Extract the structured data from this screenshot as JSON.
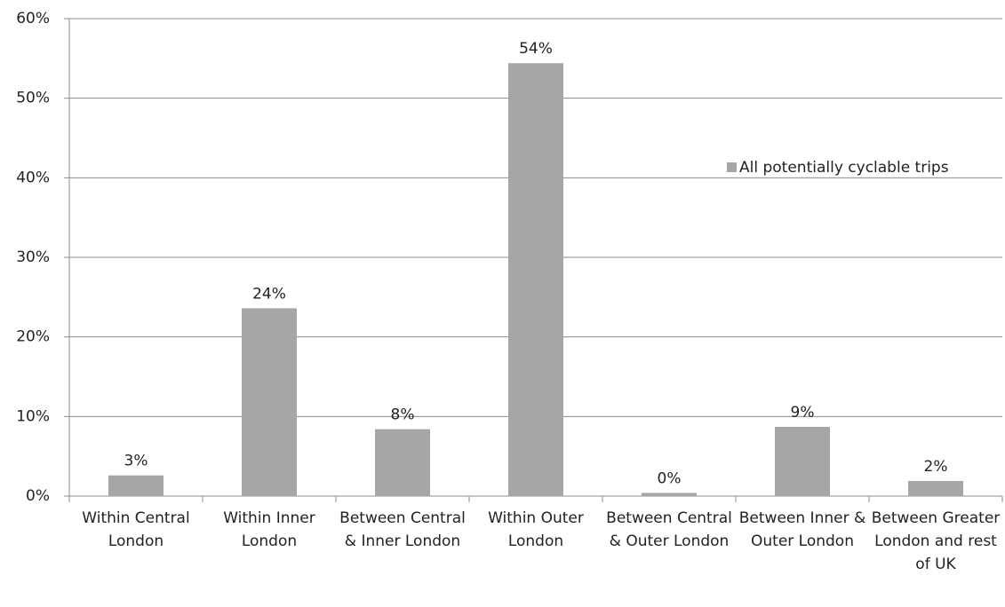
{
  "chart_data": {
    "type": "bar",
    "categories": [
      "Within Central London",
      "Within Inner London",
      "Between Central & Inner London",
      "Within Outer London",
      "Between Central & Outer London",
      "Between Inner & Outer London",
      "Between Greater London and rest of UK"
    ],
    "series": [
      {
        "name": "All potentially cyclable trips",
        "color": "#a6a6a6",
        "values": [
          2.6,
          23.6,
          8.4,
          54.4,
          0.4,
          8.7,
          1.9
        ],
        "value_labels": [
          "3%",
          "24%",
          "8%",
          "54%",
          "0%",
          "9%",
          "2%"
        ]
      }
    ],
    "ylim": [
      0,
      60
    ],
    "yticks": [
      {
        "value": 0,
        "label": "0%"
      },
      {
        "value": 10,
        "label": "10%"
      },
      {
        "value": 20,
        "label": "20%"
      },
      {
        "value": 30,
        "label": "30%"
      },
      {
        "value": 40,
        "label": "40%"
      },
      {
        "value": 50,
        "label": "50%"
      },
      {
        "value": 60,
        "label": "60%"
      }
    ],
    "grid": true
  }
}
